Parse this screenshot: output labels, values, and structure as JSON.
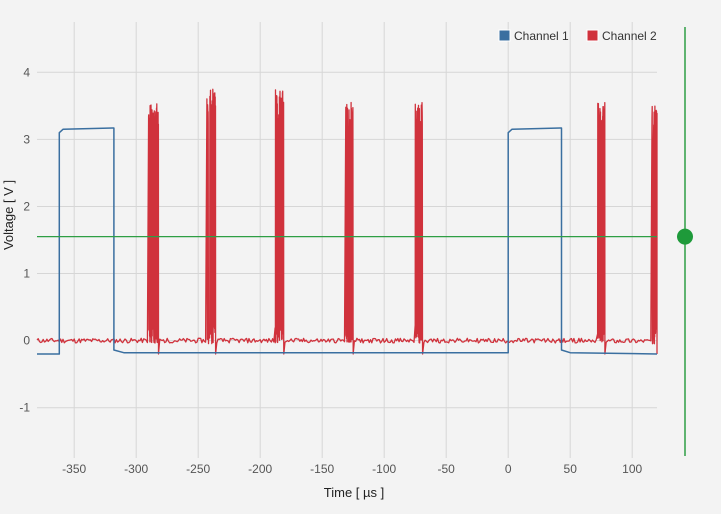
{
  "chart_data": {
    "type": "line",
    "xlabel": "Time [ µs ]",
    "ylabel": "Voltage [ V ]",
    "xlim": [
      -380,
      120
    ],
    "ylim": [
      -1.75,
      4.75
    ],
    "x_ticks": [
      -350,
      -300,
      -250,
      -200,
      -150,
      -100,
      -50,
      0,
      50,
      100
    ],
    "y_ticks": [
      -1,
      0,
      1,
      2,
      3,
      4
    ],
    "grid": true,
    "legend_position": "top-right",
    "trigger_level": 1.55,
    "colors": {
      "channel1": "#3a6fa0",
      "channel2": "#d0323c",
      "trigger": "#2e9e44"
    },
    "series": [
      {
        "name": "Channel 1",
        "x": [
          -380,
          -362,
          -362,
          -359,
          -319,
          -318,
          -318,
          -310,
          0,
          0,
          3,
          42,
          43,
          43,
          50,
          120
        ],
        "y": [
          -0.2,
          -0.2,
          3.1,
          3.15,
          3.17,
          3.17,
          -0.14,
          -0.18,
          -0.18,
          3.1,
          3.15,
          3.17,
          3.17,
          -0.14,
          -0.18,
          -0.2
        ]
      },
      {
        "name": "Channel 2",
        "baseline": 0.0,
        "bursts": [
          {
            "start": -290,
            "end": -282,
            "peak": 3.55
          },
          {
            "start": -243,
            "end": -236,
            "peak": 3.8
          },
          {
            "start": -188,
            "end": -181,
            "peak": 3.75
          },
          {
            "start": -131,
            "end": -125,
            "peak": 3.55
          },
          {
            "start": -75,
            "end": -69,
            "peak": 3.55
          },
          {
            "start": 72,
            "end": 78,
            "peak": 3.55
          },
          {
            "start": 116,
            "end": 120,
            "peak": 3.5
          }
        ]
      }
    ]
  }
}
